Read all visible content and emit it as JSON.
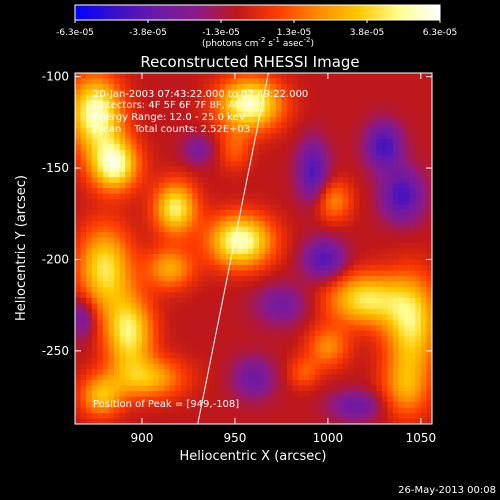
{
  "chart_data": {
    "type": "heatmap",
    "title": "Reconstructed RHESSI Image",
    "xlabel": "Heliocentric X (arcsec)",
    "ylabel": "Heliocentric Y (arcsec)",
    "xlim": [
      864,
      1056
    ],
    "ylim": [
      -290,
      -98
    ],
    "xticks": [
      900,
      950,
      1000,
      1050
    ],
    "yticks": [
      -100,
      -150,
      -200,
      -250
    ],
    "colorbar": {
      "labels": [
        "-6.3e-05",
        "-3.8e-05",
        "-1.3e-05",
        "1.3e-05",
        "3.8e-05",
        "6.3e-05"
      ],
      "unit_label": "(photons cm",
      "unit_sup1": "-2",
      "unit_mid": " s",
      "unit_sup2": "-1",
      "unit_end": " asec",
      "unit_sup3": "-2",
      "unit_close": ")",
      "colors": [
        "#0000ff",
        "#3a10c8",
        "#6a1aa8",
        "#8a1a8a",
        "#c01818",
        "#ff3c00",
        "#ff8a00",
        "#ffc800",
        "#ffff90",
        "#ffffff"
      ]
    },
    "annotations": [
      "20-Jan-2003 07:43:22.000 to 07:49:22.000",
      "Detectors: 4F 5F 6F 7F 8F, Att 0",
      "Energy Range: 12.0 - 25.0 keV",
      "Clean    Total counts: 2.52E+03"
    ],
    "peak_label": "Position of Peak = [949,-108]",
    "limb_line": [
      [
        930,
        -290
      ],
      [
        968,
        -98
      ]
    ],
    "sources": [
      {
        "x": 875,
        "y": -120,
        "amp": 1.0,
        "sx": 10,
        "sy": 14
      },
      {
        "x": 885,
        "y": -148,
        "amp": 1.0,
        "sx": 9,
        "sy": 10
      },
      {
        "x": 918,
        "y": -172,
        "amp": 0.85,
        "sx": 8,
        "sy": 10
      },
      {
        "x": 915,
        "y": -205,
        "amp": 0.55,
        "sx": 9,
        "sy": 8
      },
      {
        "x": 880,
        "y": -205,
        "amp": 0.8,
        "sx": 10,
        "sy": 16
      },
      {
        "x": 893,
        "y": -240,
        "amp": 0.85,
        "sx": 9,
        "sy": 14
      },
      {
        "x": 903,
        "y": -265,
        "amp": 0.6,
        "sx": 14,
        "sy": 8
      },
      {
        "x": 878,
        "y": -275,
        "amp": 0.6,
        "sx": 8,
        "sy": 8
      },
      {
        "x": 958,
        "y": -115,
        "amp": 1.0,
        "sx": 12,
        "sy": 10
      },
      {
        "x": 953,
        "y": -190,
        "amp": 1.0,
        "sx": 12,
        "sy": 10
      },
      {
        "x": 950,
        "y": -140,
        "amp": 0.3,
        "sx": 6,
        "sy": 8
      },
      {
        "x": 1003,
        "y": -168,
        "amp": 0.45,
        "sx": 7,
        "sy": 8
      },
      {
        "x": 1020,
        "y": -222,
        "amp": 0.8,
        "sx": 14,
        "sy": 10
      },
      {
        "x": 1045,
        "y": -235,
        "amp": 0.8,
        "sx": 10,
        "sy": 18
      },
      {
        "x": 1000,
        "y": -248,
        "amp": 0.45,
        "sx": 8,
        "sy": 8
      },
      {
        "x": 1042,
        "y": -270,
        "amp": 0.5,
        "sx": 9,
        "sy": 12
      },
      {
        "x": 987,
        "y": -262,
        "amp": 0.3,
        "sx": 6,
        "sy": 6
      },
      {
        "x": 1030,
        "y": -138,
        "amp": -0.6,
        "sx": 7,
        "sy": 9
      },
      {
        "x": 1040,
        "y": -165,
        "amp": -0.6,
        "sx": 8,
        "sy": 10
      },
      {
        "x": 992,
        "y": -152,
        "amp": -0.55,
        "sx": 6,
        "sy": 12
      },
      {
        "x": 998,
        "y": -200,
        "amp": -0.55,
        "sx": 8,
        "sy": 8
      },
      {
        "x": 975,
        "y": -225,
        "amp": -0.35,
        "sx": 10,
        "sy": 8
      },
      {
        "x": 930,
        "y": -140,
        "amp": -0.3,
        "sx": 6,
        "sy": 6
      },
      {
        "x": 960,
        "y": -265,
        "amp": -0.4,
        "sx": 8,
        "sy": 8
      },
      {
        "x": 1015,
        "y": -280,
        "amp": -0.4,
        "sx": 10,
        "sy": 6
      },
      {
        "x": 868,
        "y": -232,
        "amp": -0.4,
        "sx": 5,
        "sy": 8
      }
    ]
  },
  "footer": {
    "date": "26-May-2013 00:08"
  }
}
